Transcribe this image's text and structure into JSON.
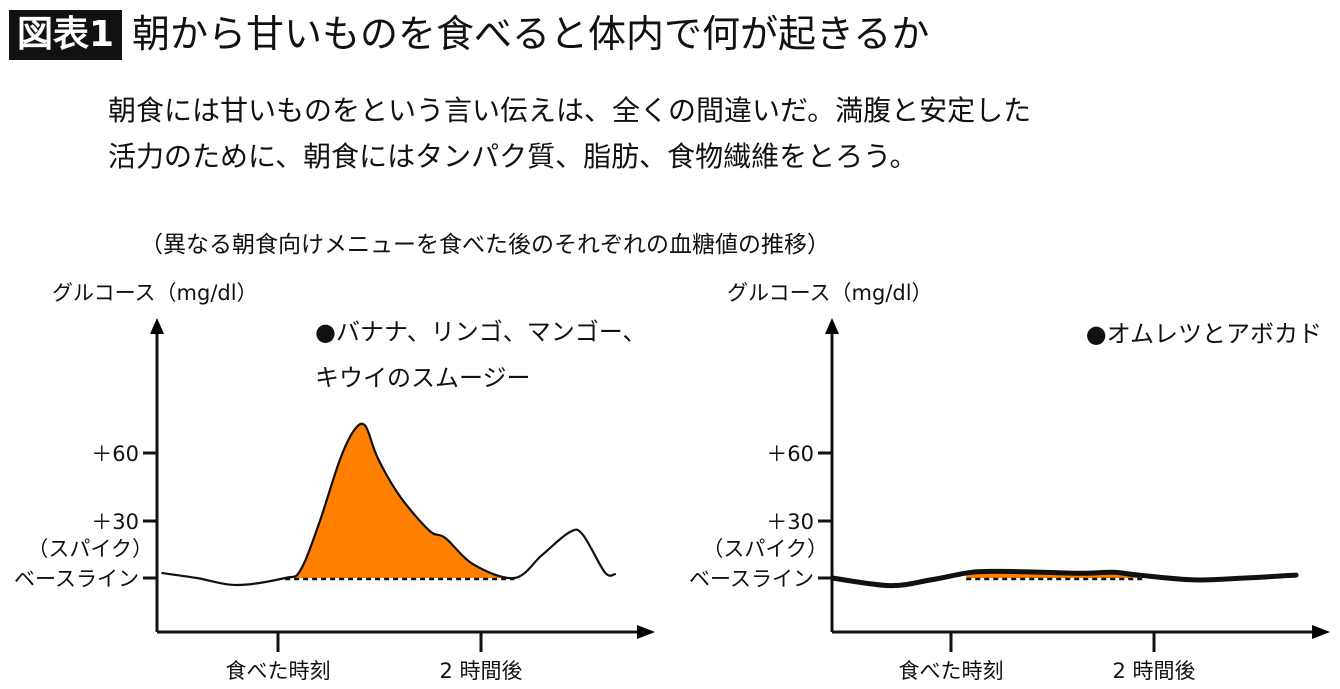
{
  "header": {
    "badge": "図表1",
    "title": "朝から甘いものを食べると体内で何が起きるか"
  },
  "lead": {
    "line1": "朝食には甘いものをという言い伝えは、全くの間違いだ。満腹と安定した",
    "line2": "活力のために、朝食にはタンパク質、脂肪、食物繊維をとろう。"
  },
  "subtitle": "（異なる朝食向けメニューを食べた後のそれぞれの血糖値の推移）",
  "colors": {
    "fill": "#FF8000",
    "line": "#111111"
  },
  "chart_data": [
    {
      "type": "area",
      "ylabel": "グルコース（mg/dl）",
      "legend": [
        "●バナナ、リンゴ、マンゴー、",
        "キウイのスムージー"
      ],
      "y_ticks": [
        {
          "value": 60,
          "label": "＋60"
        },
        {
          "value": 30,
          "label": "＋30",
          "sublabel": "（スパイク）"
        },
        {
          "value": 0,
          "label": "ベースライン"
        }
      ],
      "x_ticks": [
        {
          "value": 0,
          "label": "食べた時刻"
        },
        {
          "value": 2,
          "label": "2 時間後"
        }
      ],
      "x_unit": "hours",
      "series": {
        "name": "smoothie",
        "x": [
          -1.14,
          -0.8,
          -0.4,
          0.07,
          0.22,
          0.4,
          0.61,
          0.75,
          0.86,
          0.98,
          1.2,
          1.49,
          1.65,
          1.93,
          2.33,
          2.6,
          2.87,
          3.0,
          3.22,
          3.32
        ],
        "y": [
          2.6,
          0,
          -3.7,
          0,
          4,
          28,
          57,
          70,
          72,
          58,
          41,
          25,
          21,
          7,
          0,
          12,
          24,
          23,
          3,
          2
        ]
      },
      "shaded_range": [
        0.07,
        2.33
      ]
    },
    {
      "type": "area",
      "ylabel": "グルコース（mg/dl）",
      "legend": [
        "●オムレツとアボカド"
      ],
      "y_ticks": [
        {
          "value": 60,
          "label": "＋60"
        },
        {
          "value": 30,
          "label": "＋30",
          "sublabel": "（スパイク）"
        },
        {
          "value": 0,
          "label": "ベースライン"
        }
      ],
      "x_ticks": [
        {
          "value": 0,
          "label": "食べた時刻"
        },
        {
          "value": 2,
          "label": "2 時間後"
        }
      ],
      "x_unit": "hours",
      "series": {
        "name": "omelette",
        "x": [
          -1.17,
          -0.6,
          -0.2,
          0.2,
          0.5,
          0.9,
          1.3,
          1.6,
          1.85,
          2.4,
          2.9,
          3.4
        ],
        "y": [
          0,
          -4,
          -1,
          3,
          3.5,
          3,
          2.5,
          3,
          1.5,
          -1,
          0,
          1.5
        ]
      },
      "shaded_range": [
        0.15,
        1.9
      ]
    }
  ]
}
